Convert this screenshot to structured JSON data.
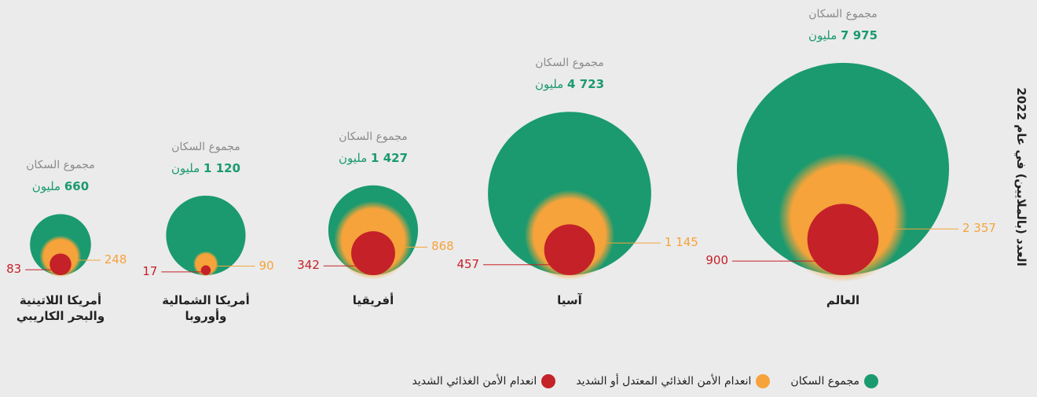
{
  "chart_data": {
    "type": "nested_bubble",
    "y_label": "العدد (بالملايين) في عام 2022",
    "unit": "مليون",
    "categories": [
      "العالم",
      "آسيا",
      "أفريقيا",
      "أمريكا الشمالية وأوروبا",
      "أمريكا اللاتينية والبحر الكاريبي"
    ],
    "series": [
      {
        "name": "مجموع السكان",
        "color": "#1b9a6f",
        "values": [
          7975,
          4723,
          1427,
          1120,
          660
        ],
        "value_labels": [
          "7 975",
          "4 723",
          "1 427",
          "1 120",
          "660"
        ]
      },
      {
        "name": "انعدام الأمن الغذائي المعتدل أو الشديد",
        "color": "#f5a33a",
        "values": [
          2357,
          1145,
          868,
          90,
          248
        ],
        "value_labels": [
          "2 357",
          "1 145",
          "868",
          "90",
          "248"
        ]
      },
      {
        "name": "انعدام الأمن الغذائي الشديد",
        "color": "#c52129",
        "values": [
          900,
          457,
          342,
          17,
          83
        ]
      }
    ]
  }
}
